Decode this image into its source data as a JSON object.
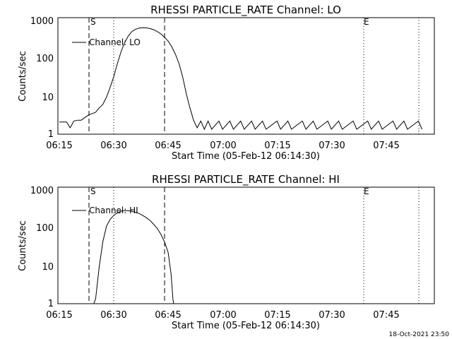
{
  "footer": {
    "date_stamp": "18-Oct-2021 23:50"
  },
  "chart_data": [
    {
      "type": "line",
      "title": "RHESSI PARTICLE_RATE Channel: LO",
      "xlabel": "Start Time (05-Feb-12 06:14:30)",
      "ylabel": "Counts/sec",
      "yscale": "log",
      "ylim": [
        1,
        1000
      ],
      "xlim_minutes": [
        0,
        103
      ],
      "x_tick_labels": [
        "06:15",
        "06:30",
        "06:45",
        "07:00",
        "07:15",
        "07:30",
        "07:45"
      ],
      "y_tick_labels": [
        "1",
        "10",
        "100",
        "1000"
      ],
      "legend": "Channel: LO",
      "markers": {
        "start_label": "S",
        "end_label": "E"
      },
      "series": [
        {
          "name": "Channel: LO",
          "points": [
            [
              0,
              1.6
            ],
            [
              2,
              1.6
            ],
            [
              3,
              1.1
            ],
            [
              4,
              1.7
            ],
            [
              5,
              1.8
            ],
            [
              6,
              1.8
            ],
            [
              8,
              2.5
            ],
            [
              10,
              3
            ],
            [
              11,
              4
            ],
            [
              12,
              5
            ],
            [
              13,
              8
            ],
            [
              14,
              15
            ],
            [
              15,
              30
            ],
            [
              16,
              70
            ],
            [
              17,
              150
            ],
            [
              18,
              270
            ],
            [
              19,
              420
            ],
            [
              20,
              560
            ],
            [
              21,
              650
            ],
            [
              22,
              700
            ],
            [
              23,
              720
            ],
            [
              24,
              710
            ],
            [
              25,
              680
            ],
            [
              26,
              630
            ],
            [
              27,
              560
            ],
            [
              28,
              480
            ],
            [
              29,
              390
            ],
            [
              30,
              300
            ],
            [
              31,
              210
            ],
            [
              32,
              130
            ],
            [
              33,
              70
            ],
            [
              34,
              30
            ],
            [
              35,
              10
            ],
            [
              36,
              4
            ],
            [
              37,
              1.8
            ],
            [
              38,
              1.1
            ],
            [
              39,
              1.7
            ],
            [
              40,
              1
            ],
            [
              41,
              1.7
            ],
            [
              42,
              1
            ],
            [
              44,
              1.7
            ],
            [
              45,
              1
            ],
            [
              47,
              1.7
            ],
            [
              48,
              1
            ],
            [
              50,
              1.7
            ],
            [
              51,
              1
            ],
            [
              53,
              1.7
            ],
            [
              54,
              1
            ],
            [
              56,
              1.7
            ],
            [
              57,
              1
            ],
            [
              60,
              1.7
            ],
            [
              61,
              1
            ],
            [
              63,
              1.7
            ],
            [
              64,
              1
            ],
            [
              67,
              1.7
            ],
            [
              68,
              1
            ],
            [
              70,
              1.7
            ],
            [
              71,
              1
            ],
            [
              74,
              1.7
            ],
            [
              75,
              1
            ],
            [
              77,
              1.7
            ],
            [
              78,
              1
            ],
            [
              81,
              1.7
            ],
            [
              82,
              1
            ],
            [
              85,
              1.7
            ],
            [
              86,
              1
            ],
            [
              88,
              1.7
            ],
            [
              89,
              1
            ],
            [
              92,
              1.7
            ],
            [
              93,
              1
            ],
            [
              95,
              1.7
            ],
            [
              96,
              1
            ],
            [
              99,
              1.7
            ],
            [
              100,
              1
            ]
          ]
        }
      ]
    },
    {
      "type": "line",
      "title": "RHESSI PARTICLE_RATE Channel: HI",
      "xlabel": "Start Time (05-Feb-12 06:14:30)",
      "ylabel": "Counts/sec",
      "yscale": "log",
      "ylim": [
        1,
        1000
      ],
      "xlim_minutes": [
        0,
        103
      ],
      "x_tick_labels": [
        "06:15",
        "06:30",
        "06:45",
        "07:00",
        "07:15",
        "07:30",
        "07:45"
      ],
      "y_tick_labels": [
        "1",
        "10",
        "100",
        "1000"
      ],
      "legend": "Channel: HI",
      "markers": {
        "start_label": "S",
        "end_label": "E"
      },
      "series": [
        {
          "name": "Channel: HI",
          "points": [
            [
              9.5,
              0.6
            ],
            [
              10,
              1
            ],
            [
              11,
              8
            ],
            [
              12,
              40
            ],
            [
              13,
              110
            ],
            [
              14,
              170
            ],
            [
              15,
              220
            ],
            [
              16,
              260
            ],
            [
              17,
              290
            ],
            [
              18,
              300
            ],
            [
              19,
              300
            ],
            [
              20,
              290
            ],
            [
              21,
              270
            ],
            [
              22,
              250
            ],
            [
              23,
              220
            ],
            [
              24,
              190
            ],
            [
              25,
              160
            ],
            [
              26,
              125
            ],
            [
              27,
              95
            ],
            [
              28,
              65
            ],
            [
              29,
              40
            ],
            [
              30,
              20
            ],
            [
              30.8,
              5
            ],
            [
              31.3,
              1
            ],
            [
              31.5,
              0.6
            ]
          ]
        }
      ]
    }
  ]
}
